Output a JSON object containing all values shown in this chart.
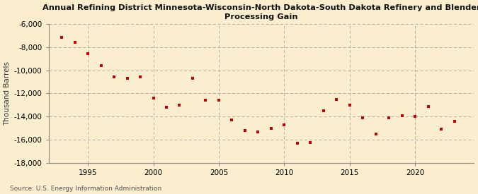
{
  "title": "Annual Refining District Minnesota-Wisconsin-North Dakota-South Dakota Refinery and Blender\nProcessing Gain",
  "ylabel": "Thousand Barrels",
  "source": "Source: U.S. Energy Information Administration",
  "background_color": "#faeecf",
  "plot_background_color": "#faeecf",
  "marker_color": "#cc0000",
  "grid_color": "#b0b0b0",
  "spine_color": "#888888",
  "years": [
    1993,
    1994,
    1995,
    1996,
    1997,
    1998,
    1999,
    2000,
    2001,
    2002,
    2003,
    2004,
    2005,
    2006,
    2007,
    2008,
    2009,
    2010,
    2011,
    2012,
    2013,
    2014,
    2015,
    2016,
    2017,
    2018,
    2019,
    2020,
    2021,
    2022,
    2023
  ],
  "values": [
    -7200,
    -7600,
    -8600,
    -9600,
    -10600,
    -10700,
    -10600,
    -12400,
    -13200,
    -13000,
    -10700,
    -12600,
    -12600,
    -14300,
    -15200,
    -15300,
    -15000,
    -14700,
    -16300,
    -16200,
    -13500,
    -12500,
    -13000,
    -14100,
    -15500,
    -14100,
    -13900,
    -14000,
    -13100,
    -15100,
    -14400
  ],
  "ylim": [
    -18000,
    -6000
  ],
  "xlim": [
    1992.0,
    2024.5
  ],
  "yticks": [
    -18000,
    -16000,
    -14000,
    -12000,
    -10000,
    -8000,
    -6000
  ],
  "xticks": [
    1995,
    2000,
    2005,
    2010,
    2015,
    2020
  ]
}
